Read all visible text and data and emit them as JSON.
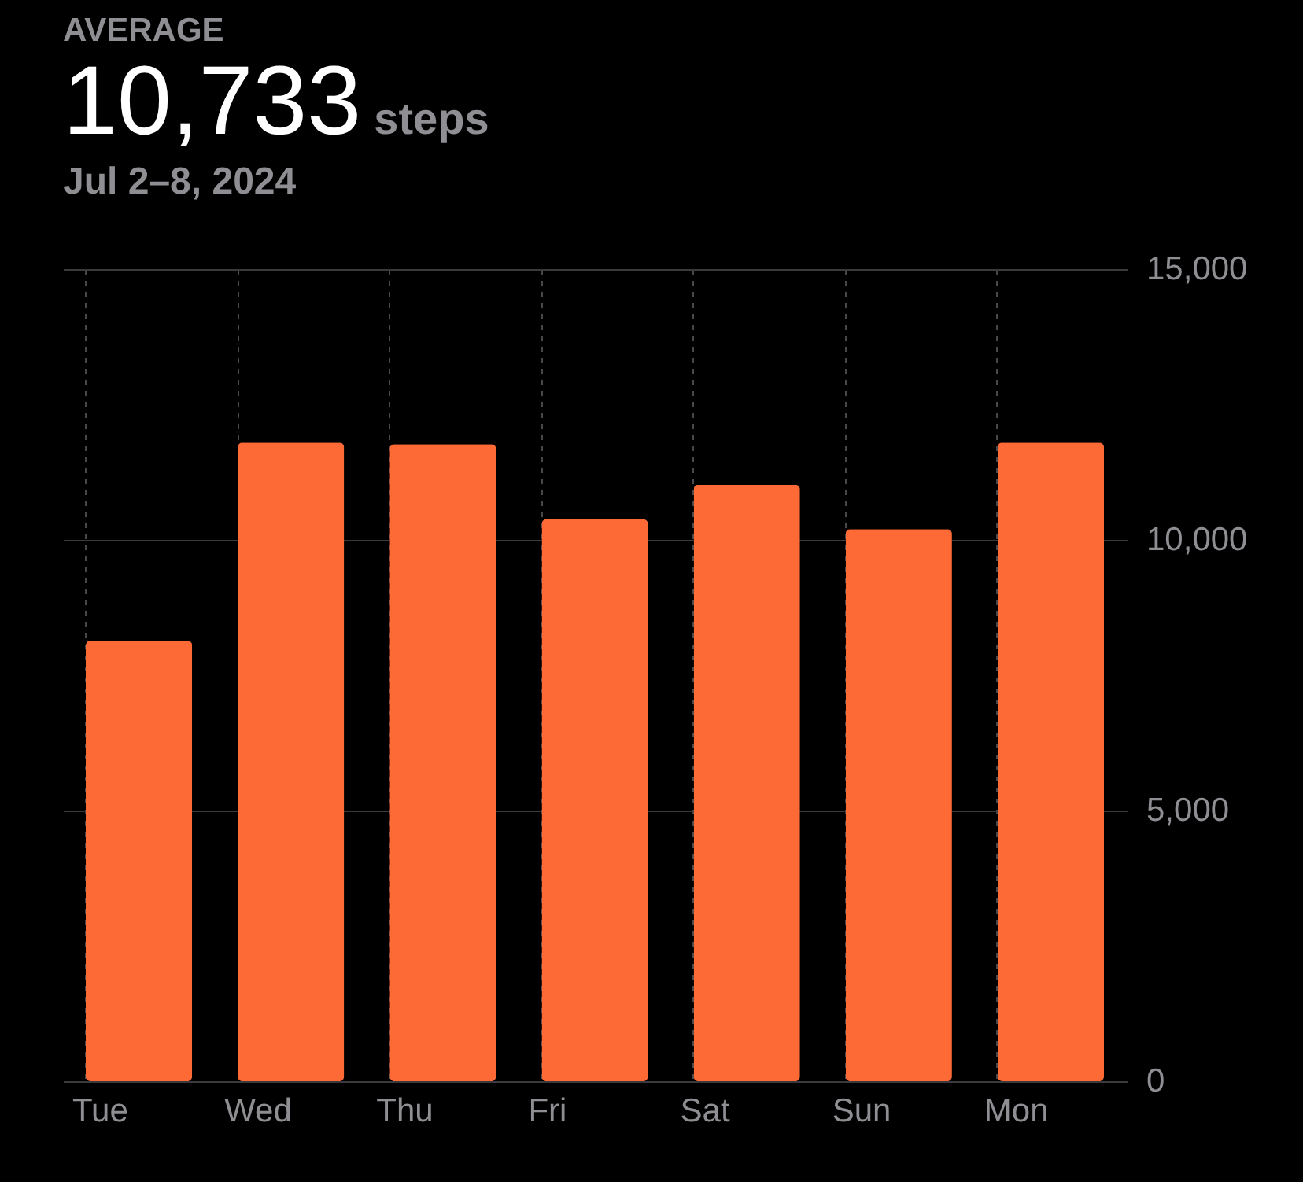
{
  "chart_data": {
    "type": "bar",
    "title": "AVERAGE",
    "subtitle": "Jul 2–8, 2024",
    "annotations": [
      "10,733",
      "steps"
    ],
    "categories": [
      "Tue",
      "Wed",
      "Thu",
      "Fri",
      "Sat",
      "Sun",
      "Mon"
    ],
    "values": [
      8140,
      11800,
      11770,
      10380,
      11020,
      10200,
      11800
    ],
    "color": "#fe6a36",
    "ylim": [
      0,
      15000
    ],
    "yticks": [
      {
        "value": 0,
        "label": "0"
      },
      {
        "value": 5000,
        "label": "5,000"
      },
      {
        "value": 10000,
        "label": "10,000"
      },
      {
        "value": 15000,
        "label": "15,000"
      }
    ],
    "grid": true
  }
}
